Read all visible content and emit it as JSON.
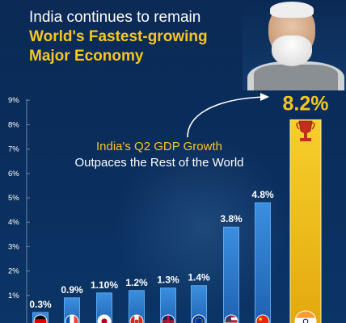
{
  "header": {
    "line1": "India continues to remain",
    "line2": "World's Fastest-growing",
    "line3": "Major Economy"
  },
  "annotation": {
    "line1": "India's Q2 GDP Growth",
    "line2": "Outpaces the Rest of the World"
  },
  "colors": {
    "background": "#0b2a55",
    "bar": "#2f7fd0",
    "highlight_bar": "#f3c523",
    "headline_accent": "#f7c623"
  },
  "icons": [
    "trophy-icon",
    "flag-germany",
    "flag-france",
    "flag-japan",
    "flag-canada",
    "flag-uk",
    "flag-eurozone",
    "flag-usa",
    "flag-china",
    "flag-india"
  ],
  "chart_data": {
    "type": "bar",
    "categories": [
      "Germany",
      "France",
      "Japan",
      "Canada",
      "UK",
      "Eurozone",
      "USA",
      "China",
      "India"
    ],
    "values": [
      0.3,
      0.9,
      1.1,
      1.2,
      1.3,
      1.4,
      3.8,
      4.8,
      8.2
    ],
    "data_labels": [
      "0.3%",
      "0.9%",
      "1.10%",
      "1.2%",
      "1.3%",
      "1.4%",
      "3.8%",
      "4.8%",
      "8.2%"
    ],
    "title": "",
    "xlabel": "",
    "ylabel": "",
    "yticks": [
      "1%",
      "2%",
      "3%",
      "4%",
      "5%",
      "6%",
      "7%",
      "8%",
      "9%"
    ],
    "ylim": [
      0,
      9
    ],
    "grid": false,
    "highlight": "India"
  }
}
